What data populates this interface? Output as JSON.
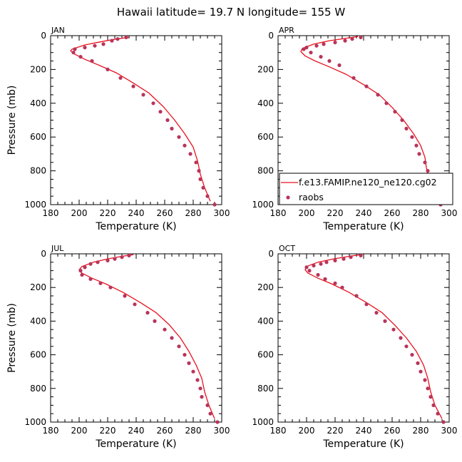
{
  "title": "Hawaii  latitude= 19.7 N longitude= 155 W",
  "colors": {
    "model": "#e8121e",
    "obs": "#b8345a"
  },
  "legend": {
    "panel": 1,
    "placement": "lower-right",
    "model_label": "f.e13.FAMIP.ne120_ne120.cg02",
    "obs_label": "raobs"
  },
  "chart_data": [
    {
      "type": "line",
      "panel_label": "JAN",
      "xlabel": "Temperature (K)",
      "ylabel": "Pressure (mb)",
      "xlim": [
        180,
        300
      ],
      "ylim": [
        1000,
        0
      ],
      "xticks": [
        "180",
        "200",
        "220",
        "240",
        "260",
        "280",
        "300"
      ],
      "yticks": [
        "0",
        "200",
        "400",
        "600",
        "800",
        "1000"
      ],
      "series": [
        {
          "name": "f.e13.FAMIP.ne120_ne120.cg02",
          "kind": "line",
          "points": [
            [
              235,
              10
            ],
            [
              226,
              20
            ],
            [
              216,
              35
            ],
            [
              204,
              55
            ],
            [
              195,
              80
            ],
            [
              194,
              90
            ],
            [
              197,
              110
            ],
            [
              204,
              140
            ],
            [
              214,
              175
            ],
            [
              226,
              220
            ],
            [
              238,
              280
            ],
            [
              249,
              340
            ],
            [
              259,
              420
            ],
            [
              267,
              500
            ],
            [
              274,
              580
            ],
            [
              280,
              660
            ],
            [
              283,
              740
            ],
            [
              285,
              820
            ],
            [
              288,
              900
            ],
            [
              292,
              980
            ]
          ]
        },
        {
          "name": "raobs",
          "kind": "scatter",
          "points": [
            [
              233,
              10
            ],
            [
              227,
              20
            ],
            [
              223,
              30
            ],
            [
              217,
              50
            ],
            [
              211,
              60
            ],
            [
              204,
              70
            ],
            [
              197,
              80
            ],
            [
              196,
              100
            ],
            [
              201,
              125
            ],
            [
              209,
              150
            ],
            [
              220,
              200
            ],
            [
              229,
              250
            ],
            [
              238,
              300
            ],
            [
              245,
              350
            ],
            [
              252,
              400
            ],
            [
              257,
              450
            ],
            [
              262,
              500
            ],
            [
              265,
              550
            ],
            [
              270,
              600
            ],
            [
              274,
              650
            ],
            [
              278,
              700
            ],
            [
              282,
              750
            ],
            [
              284,
              800
            ],
            [
              285,
              850
            ],
            [
              287,
              900
            ],
            [
              290,
              950
            ],
            [
              295,
              1000
            ]
          ]
        }
      ]
    },
    {
      "type": "line",
      "panel_label": "APR",
      "xlabel": "Temperature (K)",
      "ylabel": "",
      "xlim": [
        180,
        300
      ],
      "ylim": [
        1000,
        0
      ],
      "xticks": [
        "180",
        "200",
        "220",
        "240",
        "260",
        "280",
        "300"
      ],
      "yticks": [
        "0",
        "200",
        "400",
        "600",
        "800",
        "1000"
      ],
      "series": [
        {
          "name": "f.e13.FAMIP.ne120_ne120.cg02",
          "kind": "line",
          "points": [
            [
              236,
              5
            ],
            [
              228,
              15
            ],
            [
              216,
              30
            ],
            [
              205,
              50
            ],
            [
              197,
              75
            ],
            [
              196,
              95
            ],
            [
              199,
              120
            ],
            [
              206,
              150
            ],
            [
              216,
              185
            ],
            [
              228,
              230
            ],
            [
              240,
              290
            ],
            [
              251,
              350
            ],
            [
              260,
              425
            ],
            [
              268,
              500
            ],
            [
              275,
              580
            ],
            [
              280,
              650
            ],
            [
              283,
              720
            ],
            [
              284,
              780
            ],
            [
              286,
              860
            ],
            [
              289,
              930
            ],
            [
              292,
              990
            ]
          ]
        },
        {
          "name": "raobs",
          "kind": "scatter",
          "points": [
            [
              238,
              10
            ],
            [
              232,
              20
            ],
            [
              227,
              30
            ],
            [
              220,
              40
            ],
            [
              212,
              50
            ],
            [
              207,
              60
            ],
            [
              200,
              70
            ],
            [
              198,
              80
            ],
            [
              203,
              100
            ],
            [
              210,
              125
            ],
            [
              216,
              150
            ],
            [
              223,
              175
            ],
            [
              233,
              250
            ],
            [
              242,
              300
            ],
            [
              250,
              350
            ],
            [
              256,
              400
            ],
            [
              262,
              450
            ],
            [
              267,
              500
            ],
            [
              270,
              550
            ],
            [
              274,
              600
            ],
            [
              277,
              650
            ],
            [
              279,
              700
            ],
            [
              283,
              750
            ],
            [
              285,
              800
            ],
            [
              287,
              850
            ],
            [
              289,
              900
            ],
            [
              292,
              950
            ],
            [
              294,
              1000
            ]
          ]
        }
      ]
    },
    {
      "type": "line",
      "panel_label": "JUL",
      "xlabel": "Temperature (K)",
      "ylabel": "Pressure (mb)",
      "xlim": [
        180,
        300
      ],
      "ylim": [
        1000,
        0
      ],
      "xticks": [
        "180",
        "200",
        "220",
        "240",
        "260",
        "280",
        "300"
      ],
      "yticks": [
        "0",
        "200",
        "400",
        "600",
        "800",
        "1000"
      ],
      "series": [
        {
          "name": "f.e13.FAMIP.ne120_ne120.cg02",
          "kind": "line",
          "points": [
            [
              238,
              5
            ],
            [
              230,
              15
            ],
            [
              220,
              30
            ],
            [
              210,
              50
            ],
            [
              202,
              75
            ],
            [
              200,
              95
            ],
            [
              202,
              115
            ],
            [
              209,
              145
            ],
            [
              219,
              180
            ],
            [
              231,
              230
            ],
            [
              243,
              290
            ],
            [
              254,
              350
            ],
            [
              263,
              420
            ],
            [
              271,
              500
            ],
            [
              277,
              580
            ],
            [
              282,
              660
            ],
            [
              286,
              740
            ],
            [
              288,
              820
            ],
            [
              291,
              900
            ],
            [
              295,
              980
            ]
          ]
        },
        {
          "name": "raobs",
          "kind": "scatter",
          "points": [
            [
              235,
              10
            ],
            [
              230,
              20
            ],
            [
              225,
              30
            ],
            [
              220,
              40
            ],
            [
              213,
              50
            ],
            [
              208,
              60
            ],
            [
              204,
              80
            ],
            [
              201,
              100
            ],
            [
              202,
              125
            ],
            [
              208,
              150
            ],
            [
              215,
              175
            ],
            [
              222,
              200
            ],
            [
              232,
              250
            ],
            [
              239,
              300
            ],
            [
              248,
              350
            ],
            [
              253,
              400
            ],
            [
              260,
              450
            ],
            [
              265,
              500
            ],
            [
              270,
              550
            ],
            [
              274,
              600
            ],
            [
              277,
              650
            ],
            [
              280,
              700
            ],
            [
              283,
              750
            ],
            [
              285,
              800
            ],
            [
              286,
              850
            ],
            [
              290,
              900
            ],
            [
              292,
              950
            ],
            [
              297,
              1000
            ]
          ]
        }
      ]
    },
    {
      "type": "line",
      "panel_label": "OCT",
      "xlabel": "Temperature (K)",
      "ylabel": "",
      "xlim": [
        180,
        300
      ],
      "ylim": [
        1000,
        0
      ],
      "xticks": [
        "180",
        "200",
        "220",
        "240",
        "260",
        "280",
        "300"
      ],
      "yticks": [
        "0",
        "200",
        "400",
        "600",
        "800",
        "1000"
      ],
      "series": [
        {
          "name": "f.e13.FAMIP.ne120_ne120.cg02",
          "kind": "line",
          "points": [
            [
              238,
              5
            ],
            [
              230,
              15
            ],
            [
              219,
              30
            ],
            [
              208,
              50
            ],
            [
              200,
              75
            ],
            [
              199,
              95
            ],
            [
              201,
              115
            ],
            [
              208,
              145
            ],
            [
              218,
              180
            ],
            [
              230,
              230
            ],
            [
              242,
              290
            ],
            [
              253,
              350
            ],
            [
              262,
              425
            ],
            [
              270,
              500
            ],
            [
              277,
              580
            ],
            [
              282,
              660
            ],
            [
              285,
              740
            ],
            [
              287,
              820
            ],
            [
              290,
              900
            ],
            [
              295,
              980
            ]
          ]
        },
        {
          "name": "raobs",
          "kind": "scatter",
          "points": [
            [
              238,
              10
            ],
            [
              231,
              20
            ],
            [
              226,
              30
            ],
            [
              220,
              40
            ],
            [
              214,
              50
            ],
            [
              210,
              60
            ],
            [
              205,
              70
            ],
            [
              200,
              80
            ],
            [
              202,
              100
            ],
            [
              208,
              125
            ],
            [
              213,
              150
            ],
            [
              220,
              175
            ],
            [
              225,
              200
            ],
            [
              235,
              250
            ],
            [
              242,
              300
            ],
            [
              249,
              350
            ],
            [
              255,
              400
            ],
            [
              261,
              450
            ],
            [
              266,
              500
            ],
            [
              270,
              550
            ],
            [
              274,
              600
            ],
            [
              278,
              650
            ],
            [
              280,
              700
            ],
            [
              283,
              750
            ],
            [
              285,
              800
            ],
            [
              287,
              850
            ],
            [
              289,
              900
            ],
            [
              292,
              950
            ],
            [
              296,
              1000
            ]
          ]
        }
      ]
    }
  ]
}
